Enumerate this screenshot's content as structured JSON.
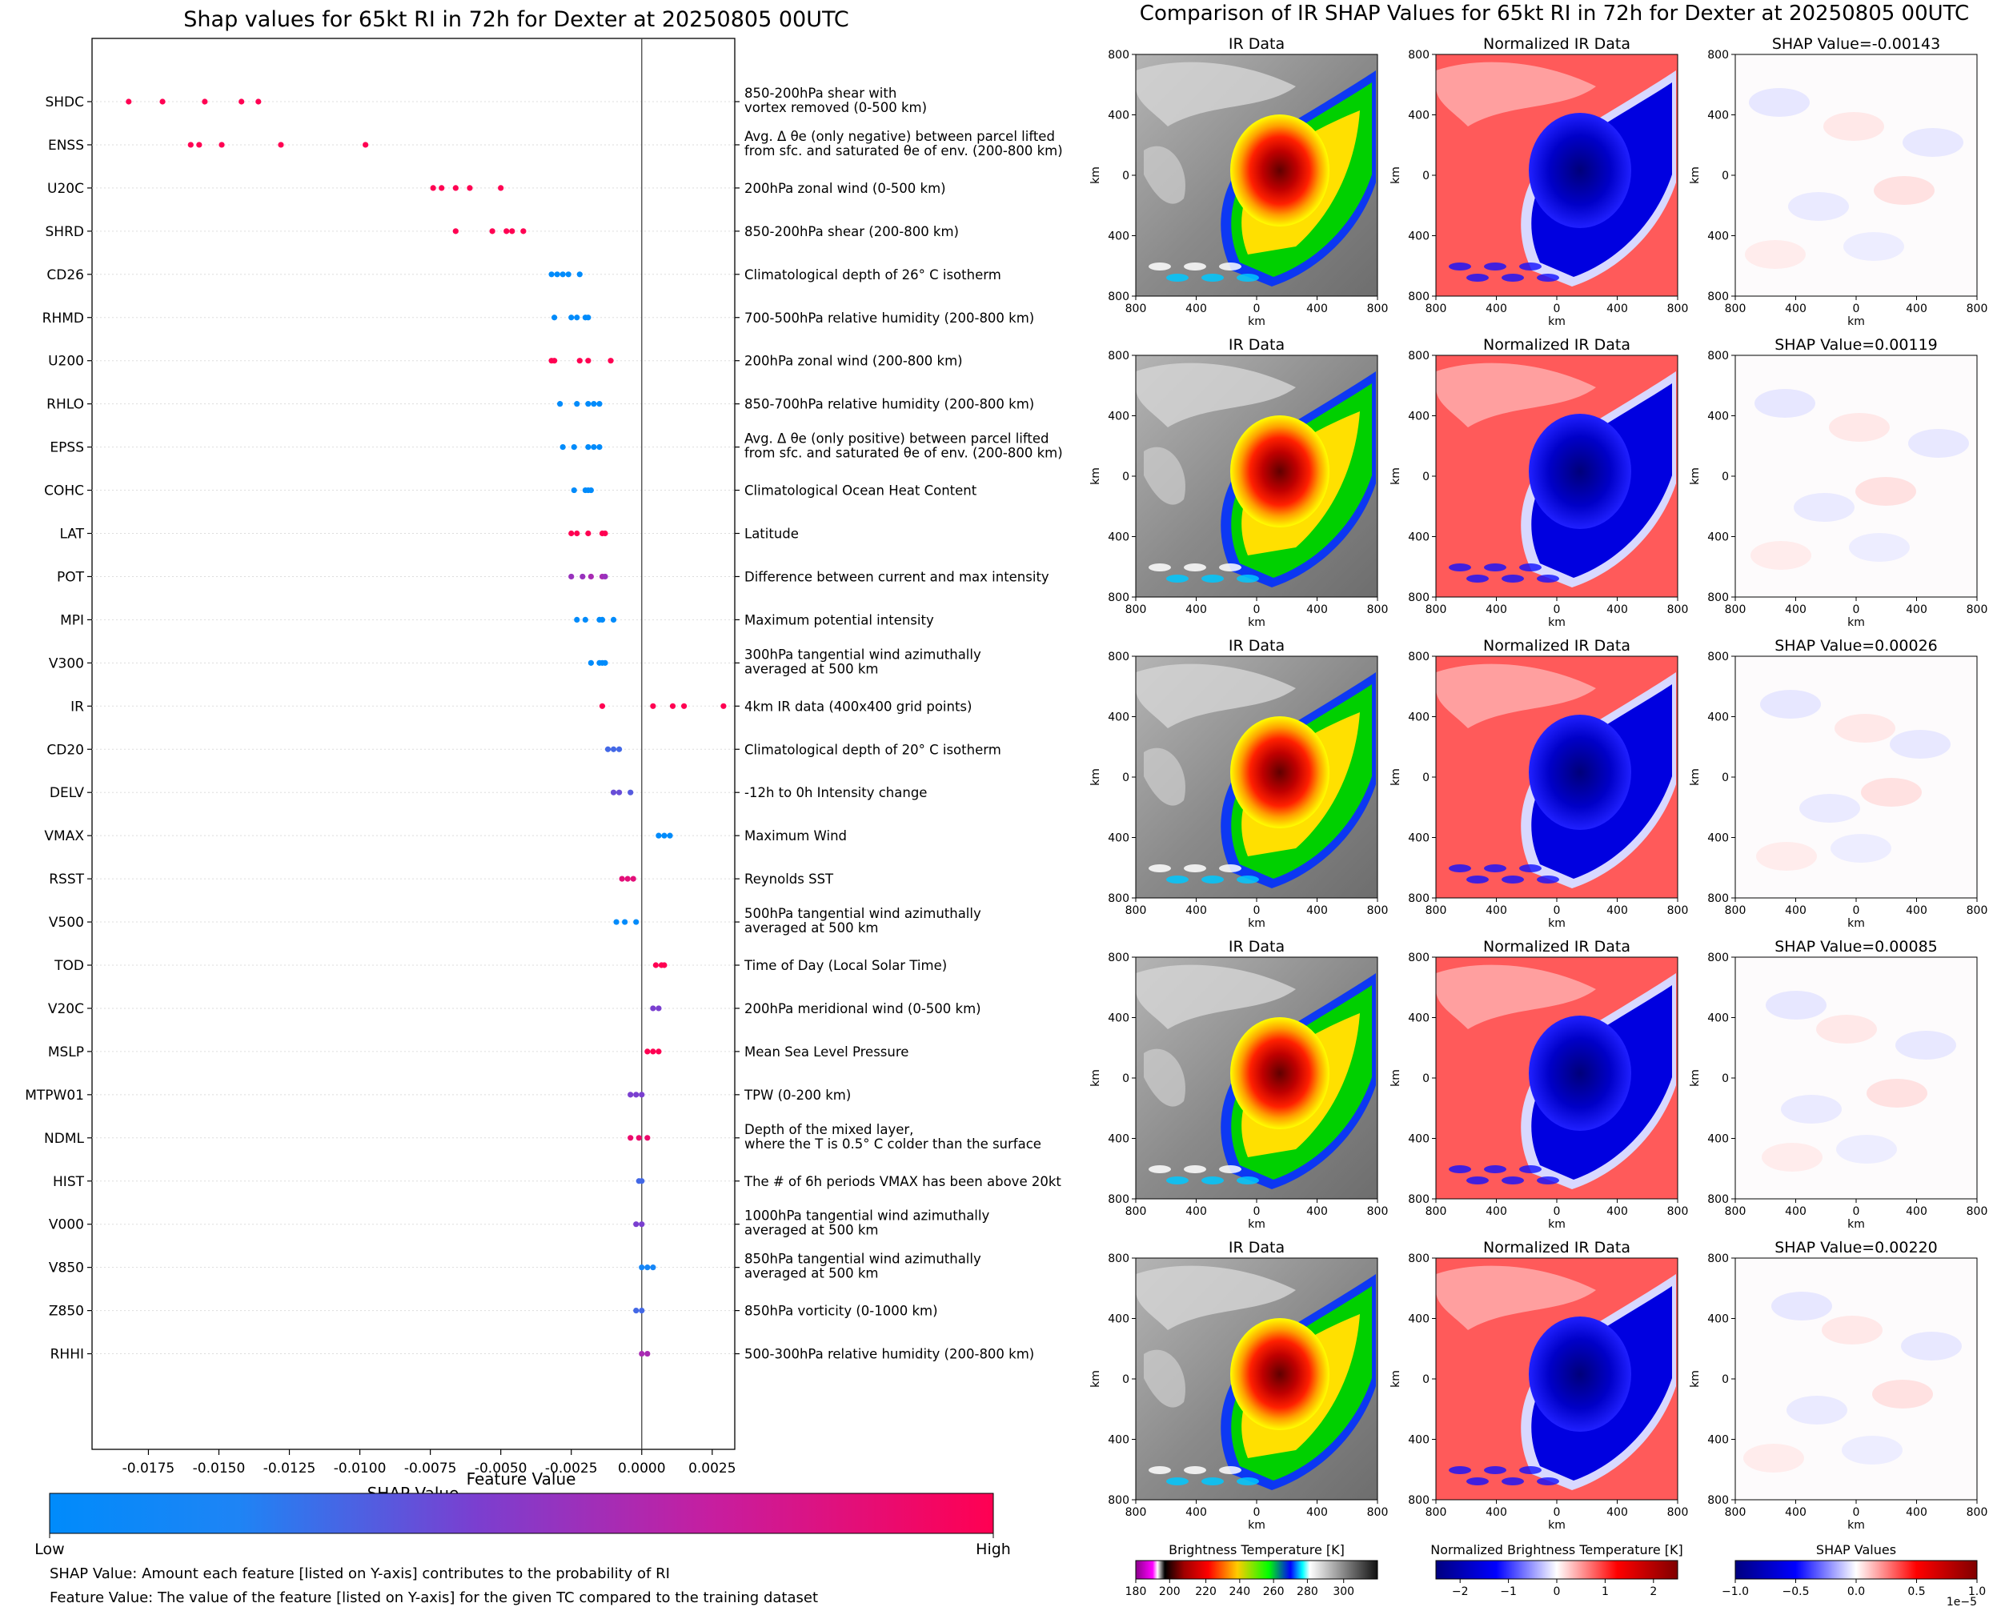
{
  "left_title": "Shap values for 65kt RI in 72h for Dexter at 20250805 00UTC",
  "right_title": "Comparison of IR SHAP Values for 65kt RI in 72h for Dexter at 20250805 00UTC",
  "chart_data": [
    {
      "type": "scatter",
      "title": "Shap values for 65kt RI in 72h for Dexter at 20250805 00UTC",
      "xlabel": "SHAP Value",
      "ylabel": "",
      "xlim": [
        -0.0195,
        0.0033
      ],
      "xticks": [
        "-0.0175",
        "-0.0150",
        "-0.0125",
        "-0.0100",
        "-0.0075",
        "-0.0050",
        "-0.0025",
        "0.0000",
        "0.0025"
      ],
      "xtick_values": [
        -0.0175,
        -0.015,
        -0.0125,
        -0.01,
        -0.0075,
        -0.005,
        -0.0025,
        0.0,
        0.0025
      ],
      "vertical_line_at": 0.0,
      "features": [
        {
          "name": "SHDC",
          "desc": [
            "850-200hPa shear with",
            "vortex removed (0-500 km)"
          ],
          "points": [
            [
              -0.0182,
              1
            ],
            [
              -0.017,
              1
            ],
            [
              -0.0155,
              1
            ],
            [
              -0.0142,
              1
            ],
            [
              -0.0136,
              1
            ]
          ]
        },
        {
          "name": "ENSS",
          "desc": [
            "Avg. Δ θe (only negative) between parcel lifted",
            "from sfc. and saturated θe of env. (200-800 km)"
          ],
          "points": [
            [
              -0.016,
              1
            ],
            [
              -0.0157,
              1
            ],
            [
              -0.0149,
              1
            ],
            [
              -0.0128,
              1
            ],
            [
              -0.0098,
              1
            ]
          ]
        },
        {
          "name": "U20C",
          "desc": [
            "200hPa zonal wind (0-500 km)"
          ],
          "points": [
            [
              -0.0074,
              1
            ],
            [
              -0.0071,
              1
            ],
            [
              -0.0066,
              1
            ],
            [
              -0.0061,
              1
            ],
            [
              -0.005,
              1
            ]
          ]
        },
        {
          "name": "SHRD",
          "desc": [
            "850-200hPa shear (200-800 km)"
          ],
          "points": [
            [
              -0.0066,
              1
            ],
            [
              -0.0053,
              1
            ],
            [
              -0.0048,
              1
            ],
            [
              -0.0046,
              1
            ],
            [
              -0.0042,
              1
            ]
          ]
        },
        {
          "name": "CD26",
          "desc": [
            "Climatological depth of 26° C isotherm"
          ],
          "points": [
            [
              -0.0032,
              0.0
            ],
            [
              -0.003,
              0.0
            ],
            [
              -0.0028,
              0.0
            ],
            [
              -0.0026,
              0.0
            ],
            [
              -0.0022,
              0.0
            ]
          ]
        },
        {
          "name": "RHMD",
          "desc": [
            "700-500hPa relative humidity (200-800 km)"
          ],
          "points": [
            [
              -0.0031,
              0.0
            ],
            [
              -0.0025,
              0.0
            ],
            [
              -0.0023,
              0.0
            ],
            [
              -0.002,
              0.0
            ],
            [
              -0.0019,
              0.0
            ]
          ]
        },
        {
          "name": "U200",
          "desc": [
            "200hPa zonal wind (200-800 km)"
          ],
          "points": [
            [
              -0.0032,
              1
            ],
            [
              -0.0031,
              1
            ],
            [
              -0.0022,
              1
            ],
            [
              -0.0019,
              1
            ],
            [
              -0.0011,
              1
            ]
          ]
        },
        {
          "name": "RHLO",
          "desc": [
            "850-700hPa relative humidity (200-800 km)"
          ],
          "points": [
            [
              -0.0029,
              0.0
            ],
            [
              -0.0023,
              0.0
            ],
            [
              -0.0019,
              0.0
            ],
            [
              -0.0017,
              0.0
            ],
            [
              -0.0015,
              0.0
            ]
          ]
        },
        {
          "name": "EPSS",
          "desc": [
            "Avg. Δ θe (only positive) between parcel lifted",
            "from sfc. and saturated θe of env. (200-800 km)"
          ],
          "points": [
            [
              -0.0028,
              0.0
            ],
            [
              -0.0024,
              0.0
            ],
            [
              -0.0019,
              0.0
            ],
            [
              -0.0017,
              0.0
            ],
            [
              -0.0015,
              0.0
            ]
          ]
        },
        {
          "name": "COHC",
          "desc": [
            "Climatological Ocean Heat Content"
          ],
          "points": [
            [
              -0.0024,
              0.0
            ],
            [
              -0.002,
              0.0
            ],
            [
              -0.0019,
              0.0
            ],
            [
              -0.0018,
              0.0
            ]
          ]
        },
        {
          "name": "LAT",
          "desc": [
            "Latitude"
          ],
          "points": [
            [
              -0.0025,
              1
            ],
            [
              -0.0023,
              1
            ],
            [
              -0.0019,
              1
            ],
            [
              -0.0014,
              1
            ],
            [
              -0.0013,
              1
            ]
          ]
        },
        {
          "name": "POT",
          "desc": [
            "Difference between current and max intensity"
          ],
          "points": [
            [
              -0.0025,
              0.55
            ],
            [
              -0.0021,
              0.55
            ],
            [
              -0.0018,
              0.6
            ],
            [
              -0.0014,
              0.6
            ],
            [
              -0.0013,
              0.55
            ]
          ]
        },
        {
          "name": "MPI",
          "desc": [
            "Maximum potential intensity"
          ],
          "points": [
            [
              -0.0023,
              0.0
            ],
            [
              -0.002,
              0.0
            ],
            [
              -0.0015,
              0.0
            ],
            [
              -0.0014,
              0.0
            ],
            [
              -0.001,
              0.0
            ]
          ]
        },
        {
          "name": "V300",
          "desc": [
            "300hPa tangential wind azimuthally",
            "averaged at 500 km"
          ],
          "points": [
            [
              -0.0018,
              0.0
            ],
            [
              -0.0015,
              0.0
            ],
            [
              -0.0014,
              0.0
            ],
            [
              -0.0013,
              0.0
            ]
          ]
        },
        {
          "name": "IR",
          "desc": [
            "4km IR data (400x400 grid points)"
          ],
          "points": [
            [
              -0.0014,
              1
            ],
            [
              0.0004,
              1
            ],
            [
              0.0011,
              1
            ],
            [
              0.0015,
              1
            ],
            [
              0.0029,
              1
            ]
          ]
        },
        {
          "name": "CD20",
          "desc": [
            "Climatological depth of 20° C isotherm"
          ],
          "points": [
            [
              -0.0012,
              0.3
            ],
            [
              -0.001,
              0.3
            ],
            [
              -0.0008,
              0.3
            ]
          ]
        },
        {
          "name": "DELV",
          "desc": [
            "-12h to 0h Intensity change"
          ],
          "points": [
            [
              -0.001,
              0.4
            ],
            [
              -0.0008,
              0.4
            ],
            [
              -0.0004,
              0.35
            ]
          ]
        },
        {
          "name": "VMAX",
          "desc": [
            "Maximum Wind"
          ],
          "points": [
            [
              0.0006,
              0.0
            ],
            [
              0.0008,
              0.0
            ],
            [
              0.001,
              0.0
            ]
          ]
        },
        {
          "name": "RSST",
          "desc": [
            "Reynolds SST"
          ],
          "points": [
            [
              -0.0007,
              0.85
            ],
            [
              -0.0005,
              0.85
            ],
            [
              -0.0003,
              0.85
            ]
          ]
        },
        {
          "name": "V500",
          "desc": [
            "500hPa tangential wind azimuthally",
            "averaged at 500 km"
          ],
          "points": [
            [
              -0.0009,
              0.0
            ],
            [
              -0.0006,
              0.0
            ],
            [
              -0.0002,
              0.0
            ]
          ]
        },
        {
          "name": "TOD",
          "desc": [
            "Time of Day (Local Solar Time)"
          ],
          "points": [
            [
              0.0005,
              1
            ],
            [
              0.0007,
              1
            ],
            [
              0.0008,
              1
            ]
          ]
        },
        {
          "name": "V20C",
          "desc": [
            "200hPa meridional wind (0-500 km)"
          ],
          "points": [
            [
              0.0004,
              0.45
            ],
            [
              0.0006,
              0.45
            ]
          ]
        },
        {
          "name": "MSLP",
          "desc": [
            "Mean Sea Level Pressure"
          ],
          "points": [
            [
              0.0002,
              1
            ],
            [
              0.0004,
              1
            ],
            [
              0.0006,
              1
            ]
          ]
        },
        {
          "name": "MTPW01",
          "desc": [
            "TPW (0-200 km)"
          ],
          "points": [
            [
              -0.0004,
              0.45
            ],
            [
              -0.0002,
              0.45
            ],
            [
              0.0,
              0.45
            ]
          ]
        },
        {
          "name": "NDML",
          "desc": [
            "Depth of the mixed layer,",
            "where the T is 0.5° C colder than the surface"
          ],
          "points": [
            [
              -0.0004,
              0.9
            ],
            [
              -0.0001,
              0.9
            ],
            [
              0.0002,
              0.9
            ]
          ]
        },
        {
          "name": "HIST",
          "desc": [
            "The # of 6h periods VMAX has been above 20kt"
          ],
          "points": [
            [
              -0.0001,
              0.3
            ],
            [
              0.0,
              0.3
            ]
          ]
        },
        {
          "name": "V000",
          "desc": [
            "1000hPa tangential wind azimuthally",
            "averaged at 500 km"
          ],
          "points": [
            [
              -0.0002,
              0.45
            ],
            [
              0.0,
              0.45
            ]
          ]
        },
        {
          "name": "V850",
          "desc": [
            "850hPa tangential wind azimuthally",
            "averaged at 500 km"
          ],
          "points": [
            [
              0.0,
              0.15
            ],
            [
              0.0002,
              0.15
            ],
            [
              0.0004,
              0.15
            ]
          ]
        },
        {
          "name": "Z850",
          "desc": [
            "850hPa vorticity (0-1000 km)"
          ],
          "points": [
            [
              -0.0002,
              0.3
            ],
            [
              0.0,
              0.3
            ]
          ]
        },
        {
          "name": "RHHI",
          "desc": [
            "500-300hPa relative humidity (200-800 km)"
          ],
          "points": [
            [
              0.0,
              0.6
            ],
            [
              0.0002,
              0.6
            ]
          ]
        }
      ]
    }
  ],
  "colorbar": {
    "title": "Feature Value",
    "low_label": "Low",
    "high_label": "High",
    "low_color": "#008bfb",
    "mid_color": "#8c2bc6",
    "high_color": "#ff0052"
  },
  "notes": [
    "SHAP Value: Amount each feature [listed on Y-axis] contributes to the probability of RI",
    "Feature Value: The value of the feature [listed on Y-axis] for the given TC compared to the training dataset"
  ],
  "panels": {
    "col_titles": [
      "IR Data",
      "Normalized IR Data"
    ],
    "shap_titles": [
      "SHAP Value=-0.00143",
      "SHAP Value=0.00119",
      "SHAP Value=0.00026",
      "SHAP Value=0.00085",
      "SHAP Value=0.00220"
    ],
    "axis_label": "km",
    "xticks": [
      "800",
      "400",
      "0",
      "400",
      "800"
    ],
    "yticks": [
      "800",
      "400",
      "0",
      "400",
      "800"
    ]
  },
  "panel_colorbars": {
    "ir": {
      "label": "Brightness Temperature [K]",
      "ticks": [
        "180",
        "200",
        "220",
        "240",
        "260",
        "280",
        "300"
      ]
    },
    "norm": {
      "label": "Normalized Brightness Temperature [K]",
      "ticks": [
        "−2",
        "−1",
        "0",
        "1",
        "2"
      ]
    },
    "shap": {
      "label": "SHAP Values",
      "ticks": [
        "−1.0",
        "−0.5",
        "0.0",
        "0.5",
        "1.0"
      ],
      "exponent": "1e−5"
    }
  }
}
